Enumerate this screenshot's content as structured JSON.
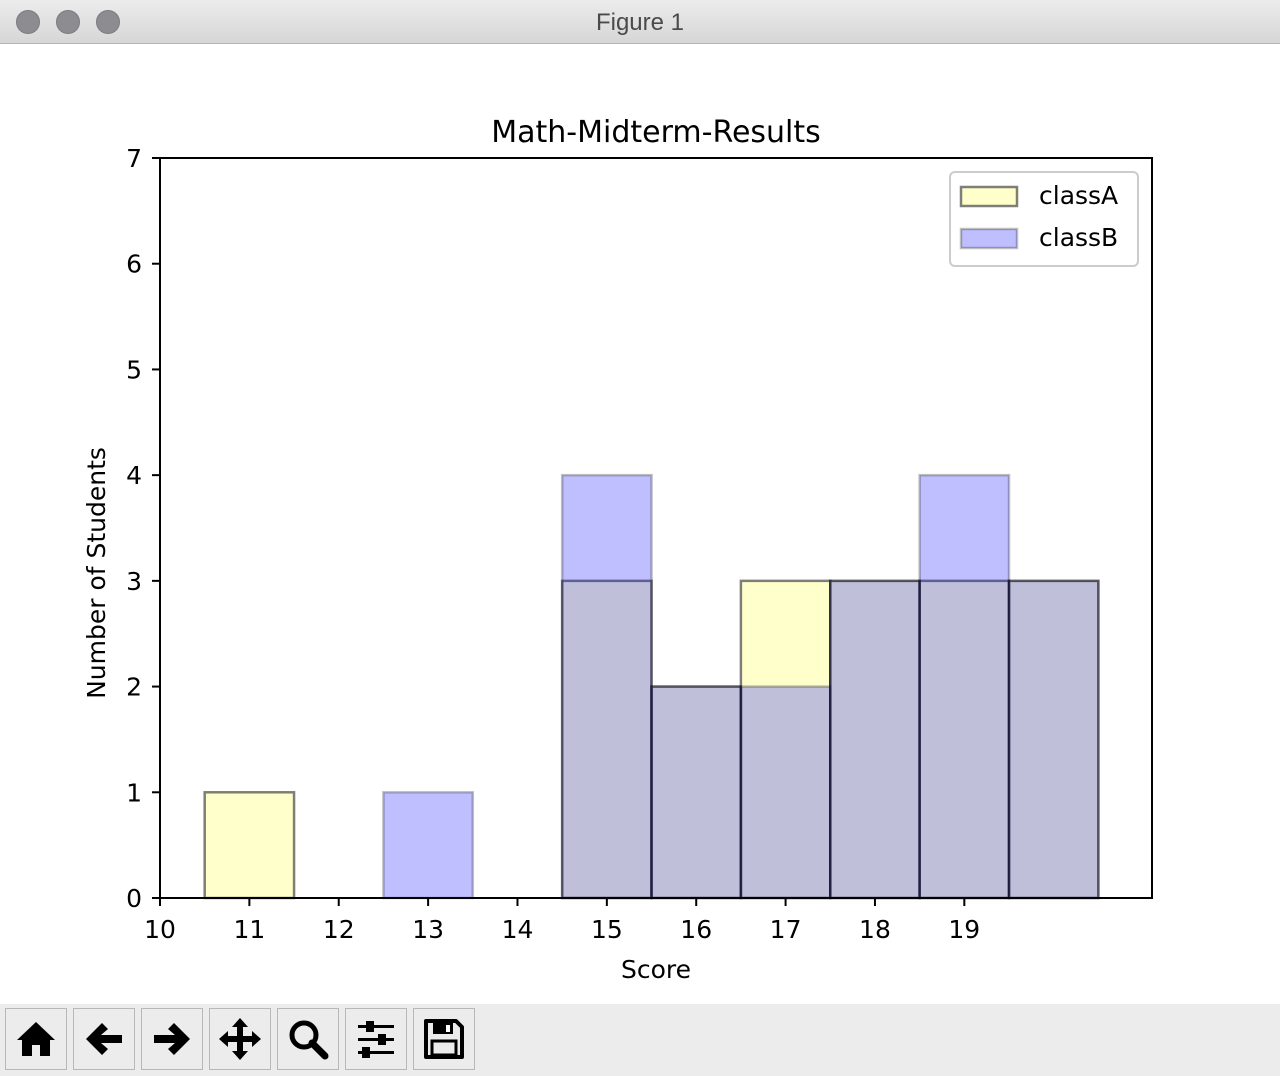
{
  "window": {
    "title": "Figure 1"
  },
  "toolbar": {
    "tools": [
      {
        "name": "home",
        "icon": "home-icon"
      },
      {
        "name": "back",
        "icon": "arrow-left-icon"
      },
      {
        "name": "forward",
        "icon": "arrow-right-icon"
      },
      {
        "name": "pan",
        "icon": "move-icon"
      },
      {
        "name": "zoom",
        "icon": "magnifier-icon"
      },
      {
        "name": "configure-subplots",
        "icon": "sliders-icon"
      },
      {
        "name": "save",
        "icon": "floppy-disk-icon"
      }
    ]
  },
  "chart_data": {
    "type": "bar",
    "title": "Math-Midterm-Results",
    "xlabel": "Score",
    "ylabel": "Number of Students",
    "xlim": [
      10,
      21.1
    ],
    "ylim": [
      0,
      7
    ],
    "xticks": [
      10,
      11,
      12,
      13,
      14,
      15,
      16,
      17,
      18,
      19
    ],
    "yticks": [
      0,
      1,
      2,
      3,
      4,
      5,
      6,
      7
    ],
    "bin_width": 1,
    "bins": [
      11,
      12,
      13,
      14,
      15,
      16,
      17,
      18,
      19,
      20
    ],
    "series": [
      {
        "name": "classA",
        "color": "#ffff99",
        "alpha": 0.5,
        "values": [
          1,
          0,
          0,
          0,
          3,
          2,
          3,
          3,
          3,
          3
        ]
      },
      {
        "name": "classB",
        "color": "#0000ff",
        "alpha": 0.25,
        "values": [
          0,
          0,
          1,
          0,
          4,
          2,
          2,
          3,
          4,
          3
        ]
      }
    ],
    "legend": "top-right",
    "grid": false
  }
}
